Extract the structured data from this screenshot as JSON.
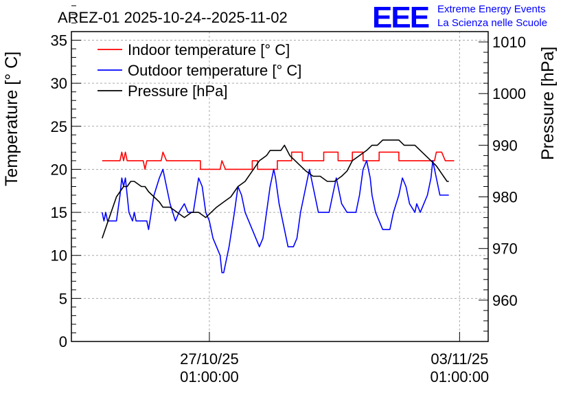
{
  "chart_data": {
    "type": "line",
    "title": "AREZ-01 2025-10-24--2025-11-02",
    "ylabel": "Temperature [° C]",
    "y2label": "Pressure [hPa]",
    "ylim": [
      0,
      36
    ],
    "y2lim": [
      952,
      1012
    ],
    "yticks": [
      0,
      5,
      10,
      15,
      20,
      25,
      30,
      35
    ],
    "y2ticks": [
      960,
      970,
      980,
      990,
      1000,
      1010
    ],
    "xticks": [
      {
        "date": "27/10/25",
        "time": "01:00:00",
        "day": 3
      },
      {
        "date": "03/11/25",
        "time": "01:00:00",
        "day": 10
      }
    ],
    "xlim_days": [
      -0.86,
      10.8
    ],
    "grid": true,
    "legend_position": "top-left",
    "series": [
      {
        "name": "Indoor temperature [° C]",
        "axis": "left",
        "color": "#ff0000",
        "points": [
          [
            0,
            21
          ],
          [
            0.5,
            21
          ],
          [
            0.55,
            22
          ],
          [
            0.6,
            21
          ],
          [
            0.65,
            22
          ],
          [
            0.7,
            21
          ],
          [
            1.15,
            21
          ],
          [
            1.2,
            20
          ],
          [
            1.25,
            21
          ],
          [
            1.65,
            21
          ],
          [
            1.7,
            22
          ],
          [
            1.8,
            21
          ],
          [
            2.75,
            21
          ],
          [
            2.75,
            20
          ],
          [
            3.3,
            20
          ],
          [
            3.35,
            21
          ],
          [
            3.45,
            20
          ],
          [
            4.2,
            20
          ],
          [
            4.2,
            21
          ],
          [
            4.35,
            21
          ],
          [
            4.35,
            20
          ],
          [
            4.9,
            20
          ],
          [
            4.9,
            21
          ],
          [
            5.3,
            21
          ],
          [
            5.3,
            22
          ],
          [
            5.6,
            22
          ],
          [
            5.6,
            21
          ],
          [
            6.2,
            21
          ],
          [
            6.2,
            22
          ],
          [
            6.6,
            22
          ],
          [
            6.6,
            21
          ],
          [
            7.0,
            21
          ],
          [
            7.0,
            22
          ],
          [
            7.3,
            22
          ],
          [
            7.3,
            21
          ],
          [
            7.75,
            21
          ],
          [
            7.75,
            22
          ],
          [
            8.3,
            22
          ],
          [
            8.3,
            21
          ],
          [
            9.3,
            21
          ],
          [
            9.35,
            22
          ],
          [
            9.5,
            22
          ],
          [
            9.6,
            21
          ],
          [
            9.85,
            21
          ]
        ]
      },
      {
        "name": "Outdoor temperature [° C]",
        "axis": "left",
        "color": "#0000ff",
        "points": [
          [
            0,
            15
          ],
          [
            0.05,
            14
          ],
          [
            0.1,
            15
          ],
          [
            0.15,
            14
          ],
          [
            0.4,
            14
          ],
          [
            0.5,
            17
          ],
          [
            0.55,
            19
          ],
          [
            0.6,
            18
          ],
          [
            0.65,
            19
          ],
          [
            0.75,
            15
          ],
          [
            0.85,
            14
          ],
          [
            0.9,
            15
          ],
          [
            0.95,
            14
          ],
          [
            1.25,
            14
          ],
          [
            1.3,
            13
          ],
          [
            1.45,
            17
          ],
          [
            1.6,
            19
          ],
          [
            1.7,
            20
          ],
          [
            1.75,
            19
          ],
          [
            1.9,
            16
          ],
          [
            2.05,
            14
          ],
          [
            2.15,
            15
          ],
          [
            2.3,
            16
          ],
          [
            2.4,
            15
          ],
          [
            2.55,
            15
          ],
          [
            2.7,
            19
          ],
          [
            2.8,
            18
          ],
          [
            2.9,
            15
          ],
          [
            3.0,
            14
          ],
          [
            3.1,
            12
          ],
          [
            3.2,
            11
          ],
          [
            3.3,
            10
          ],
          [
            3.35,
            8
          ],
          [
            3.4,
            8
          ],
          [
            3.55,
            11
          ],
          [
            3.7,
            15
          ],
          [
            3.8,
            18
          ],
          [
            3.9,
            17
          ],
          [
            4.0,
            15
          ],
          [
            4.1,
            14
          ],
          [
            4.3,
            12
          ],
          [
            4.4,
            11
          ],
          [
            4.5,
            12
          ],
          [
            4.6,
            15
          ],
          [
            4.7,
            18
          ],
          [
            4.8,
            20
          ],
          [
            4.85,
            19
          ],
          [
            4.95,
            16
          ],
          [
            5.1,
            13
          ],
          [
            5.2,
            11
          ],
          [
            5.35,
            11
          ],
          [
            5.45,
            12
          ],
          [
            5.55,
            15
          ],
          [
            5.7,
            18
          ],
          [
            5.8,
            20
          ],
          [
            5.9,
            18
          ],
          [
            6.05,
            15
          ],
          [
            6.2,
            15
          ],
          [
            6.35,
            15
          ],
          [
            6.45,
            17
          ],
          [
            6.55,
            19
          ],
          [
            6.6,
            18
          ],
          [
            6.7,
            16
          ],
          [
            6.85,
            15
          ],
          [
            7.1,
            15
          ],
          [
            7.2,
            17
          ],
          [
            7.3,
            20
          ],
          [
            7.4,
            21
          ],
          [
            7.5,
            19
          ],
          [
            7.55,
            17
          ],
          [
            7.65,
            15
          ],
          [
            7.75,
            14
          ],
          [
            7.85,
            13
          ],
          [
            8.05,
            13
          ],
          [
            8.15,
            15
          ],
          [
            8.3,
            17
          ],
          [
            8.4,
            19
          ],
          [
            8.5,
            18
          ],
          [
            8.6,
            16
          ],
          [
            8.75,
            15
          ],
          [
            8.8,
            16
          ],
          [
            8.9,
            15
          ],
          [
            9.0,
            16
          ],
          [
            9.1,
            17
          ],
          [
            9.2,
            19
          ],
          [
            9.25,
            21
          ],
          [
            9.3,
            20
          ],
          [
            9.35,
            19
          ],
          [
            9.45,
            17
          ],
          [
            9.5,
            17
          ],
          [
            9.7,
            17
          ]
        ]
      },
      {
        "name": "Pressure [hPa]",
        "axis": "right",
        "color": "#000000",
        "points": [
          [
            0,
            972
          ],
          [
            0.1,
            974
          ],
          [
            0.25,
            977
          ],
          [
            0.4,
            980
          ],
          [
            0.5,
            981
          ],
          [
            0.6,
            982
          ],
          [
            0.7,
            982
          ],
          [
            0.8,
            983
          ],
          [
            0.9,
            983
          ],
          [
            1.1,
            982
          ],
          [
            1.2,
            982
          ],
          [
            1.3,
            981
          ],
          [
            1.45,
            980
          ],
          [
            1.6,
            979
          ],
          [
            1.7,
            978
          ],
          [
            1.9,
            978
          ],
          [
            2.1,
            977
          ],
          [
            2.3,
            976
          ],
          [
            2.5,
            977
          ],
          [
            2.7,
            977
          ],
          [
            2.9,
            976
          ],
          [
            3.05,
            977
          ],
          [
            3.2,
            978
          ],
          [
            3.4,
            979
          ],
          [
            3.6,
            980
          ],
          [
            3.8,
            982
          ],
          [
            4.0,
            983
          ],
          [
            4.2,
            985
          ],
          [
            4.4,
            987
          ],
          [
            4.6,
            988
          ],
          [
            4.7,
            989
          ],
          [
            4.85,
            989
          ],
          [
            5.0,
            989
          ],
          [
            5.1,
            990
          ],
          [
            5.25,
            988
          ],
          [
            5.4,
            987
          ],
          [
            5.55,
            986
          ],
          [
            5.7,
            985
          ],
          [
            5.9,
            984
          ],
          [
            6.1,
            984
          ],
          [
            6.3,
            983
          ],
          [
            6.5,
            983
          ],
          [
            6.7,
            984
          ],
          [
            6.85,
            985
          ],
          [
            7.0,
            987
          ],
          [
            7.2,
            988
          ],
          [
            7.4,
            989
          ],
          [
            7.55,
            990
          ],
          [
            7.7,
            990
          ],
          [
            7.85,
            991
          ],
          [
            8.0,
            991
          ],
          [
            8.15,
            991
          ],
          [
            8.3,
            991
          ],
          [
            8.45,
            990
          ],
          [
            8.6,
            990
          ],
          [
            8.75,
            990
          ],
          [
            8.9,
            989
          ],
          [
            9.05,
            988
          ],
          [
            9.2,
            987
          ],
          [
            9.35,
            986
          ],
          [
            9.45,
            985
          ],
          [
            9.55,
            984
          ],
          [
            9.65,
            983
          ],
          [
            9.7,
            983
          ]
        ]
      }
    ]
  },
  "logo": {
    "mark": "EEE",
    "line1": "Extreme Energy Events",
    "line2": "La Scienza nelle Scuole",
    "color": "#0000ff"
  }
}
